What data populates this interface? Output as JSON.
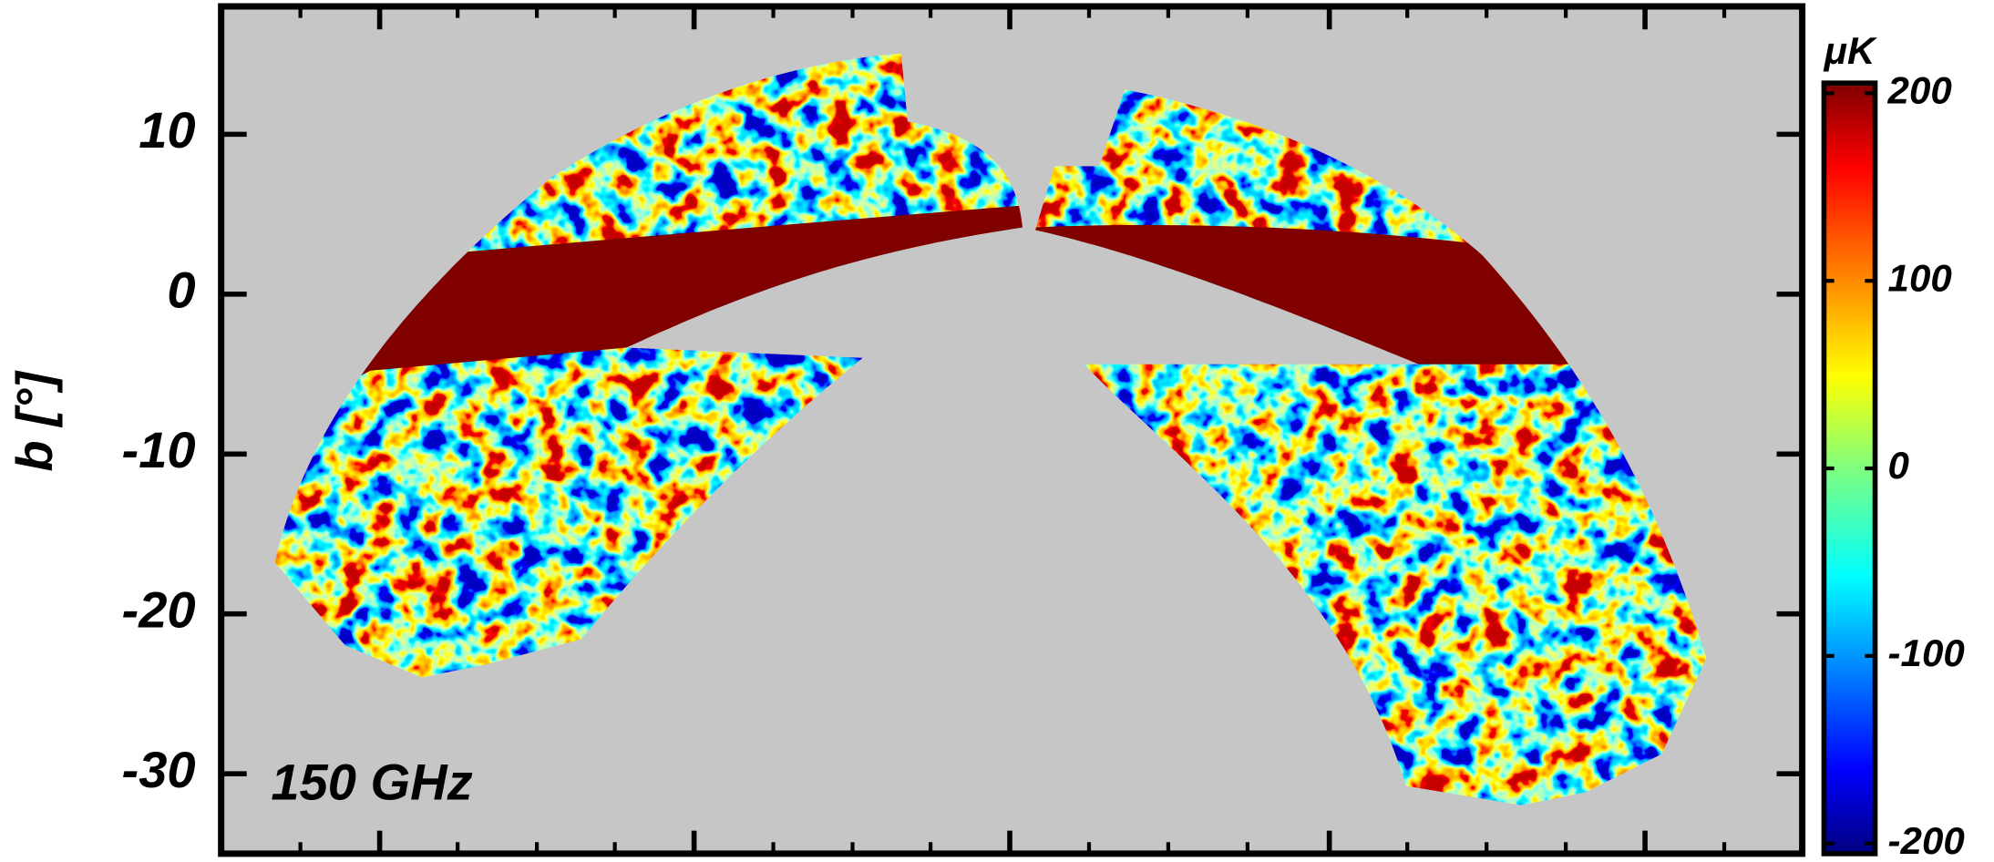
{
  "chart_data": {
    "type": "map",
    "annotation": "150 GHz",
    "ylabel": "b [°]",
    "ylim": [
      -35,
      18
    ],
    "yticks": [
      10,
      0,
      -10,
      -20,
      -30
    ],
    "colorbar": {
      "label": "μK",
      "lim": [
        -200,
        200
      ],
      "ticks": [
        200,
        100,
        0,
        -100,
        -200
      ]
    }
  }
}
